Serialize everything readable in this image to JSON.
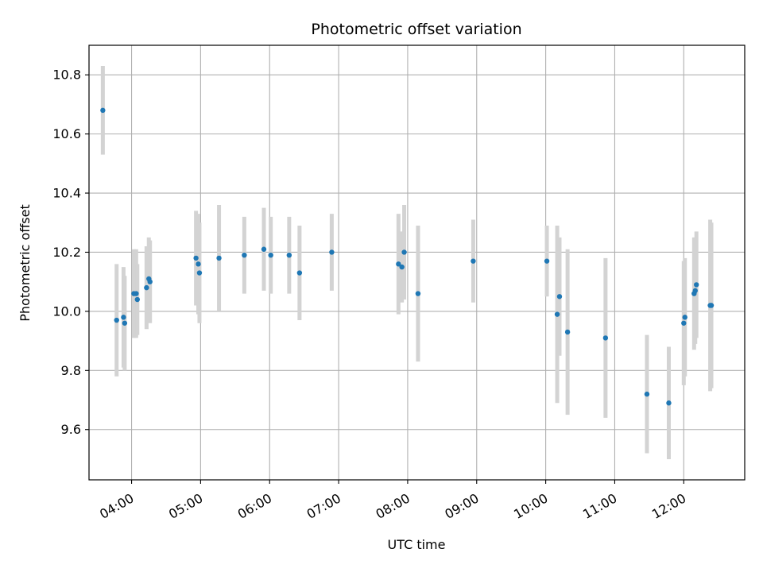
{
  "chart_data": {
    "type": "scatter",
    "title": "Photometric offset variation",
    "xlabel": "UTC time",
    "ylabel": "Photometric offset",
    "grid": true,
    "x_tick_labels": [
      "04:00",
      "05:00",
      "06:00",
      "07:00",
      "08:00",
      "09:00",
      "10:00",
      "11:00",
      "12:00"
    ],
    "y_tick_labels": [
      "9.6",
      "9.8",
      "10.0",
      "10.2",
      "10.4",
      "10.6",
      "10.8"
    ],
    "y_ticks": [
      9.6,
      9.8,
      10.0,
      10.2,
      10.4,
      10.6,
      10.8
    ],
    "xlim": [
      "03:23",
      "12:53"
    ],
    "ylim": [
      9.43,
      10.9
    ],
    "colors": {
      "point": "#1f77b4",
      "errorbar": "#d3d3d3",
      "grid": "#b0b0b0"
    },
    "points": [
      {
        "x": "03:35",
        "y": 10.68,
        "err": 0.15
      },
      {
        "x": "03:47",
        "y": 9.97,
        "err": 0.19
      },
      {
        "x": "03:53",
        "y": 9.98,
        "err": 0.17
      },
      {
        "x": "03:54",
        "y": 9.96,
        "err": 0.16
      },
      {
        "x": "04:02",
        "y": 10.06,
        "err": 0.15
      },
      {
        "x": "04:04",
        "y": 10.06,
        "err": 0.15
      },
      {
        "x": "04:05",
        "y": 10.04,
        "err": 0.12
      },
      {
        "x": "04:13",
        "y": 10.08,
        "err": 0.14
      },
      {
        "x": "04:15",
        "y": 10.11,
        "err": 0.14
      },
      {
        "x": "04:16",
        "y": 10.1,
        "err": 0.14
      },
      {
        "x": "04:56",
        "y": 10.18,
        "err": 0.16
      },
      {
        "x": "04:58",
        "y": 10.16,
        "err": 0.17
      },
      {
        "x": "04:59",
        "y": 10.13,
        "err": 0.17
      },
      {
        "x": "05:16",
        "y": 10.18,
        "err": 0.18
      },
      {
        "x": "05:38",
        "y": 10.19,
        "err": 0.13
      },
      {
        "x": "05:55",
        "y": 10.21,
        "err": 0.14
      },
      {
        "x": "06:01",
        "y": 10.19,
        "err": 0.13
      },
      {
        "x": "06:17",
        "y": 10.19,
        "err": 0.13
      },
      {
        "x": "06:26",
        "y": 10.13,
        "err": 0.16
      },
      {
        "x": "06:54",
        "y": 10.2,
        "err": 0.13
      },
      {
        "x": "07:52",
        "y": 10.16,
        "err": 0.17
      },
      {
        "x": "07:55",
        "y": 10.15,
        "err": 0.12
      },
      {
        "x": "07:57",
        "y": 10.2,
        "err": 0.16
      },
      {
        "x": "08:09",
        "y": 10.06,
        "err": 0.23
      },
      {
        "x": "08:57",
        "y": 10.17,
        "err": 0.14
      },
      {
        "x": "10:01",
        "y": 10.17,
        "err": 0.12
      },
      {
        "x": "10:10",
        "y": 9.99,
        "err": 0.3
      },
      {
        "x": "10:12",
        "y": 10.05,
        "err": 0.2
      },
      {
        "x": "10:19",
        "y": 9.93,
        "err": 0.28
      },
      {
        "x": "10:52",
        "y": 9.91,
        "err": 0.27
      },
      {
        "x": "11:28",
        "y": 9.72,
        "err": 0.2
      },
      {
        "x": "11:47",
        "y": 9.69,
        "err": 0.19
      },
      {
        "x": "12:00",
        "y": 9.96,
        "err": 0.21
      },
      {
        "x": "12:01",
        "y": 9.98,
        "err": 0.2
      },
      {
        "x": "12:09",
        "y": 10.06,
        "err": 0.19
      },
      {
        "x": "12:10",
        "y": 10.07,
        "err": 0.18
      },
      {
        "x": "12:11",
        "y": 10.09,
        "err": 0.18
      },
      {
        "x": "12:23",
        "y": 10.02,
        "err": 0.29
      },
      {
        "x": "12:24",
        "y": 10.02,
        "err": 0.28
      }
    ]
  }
}
